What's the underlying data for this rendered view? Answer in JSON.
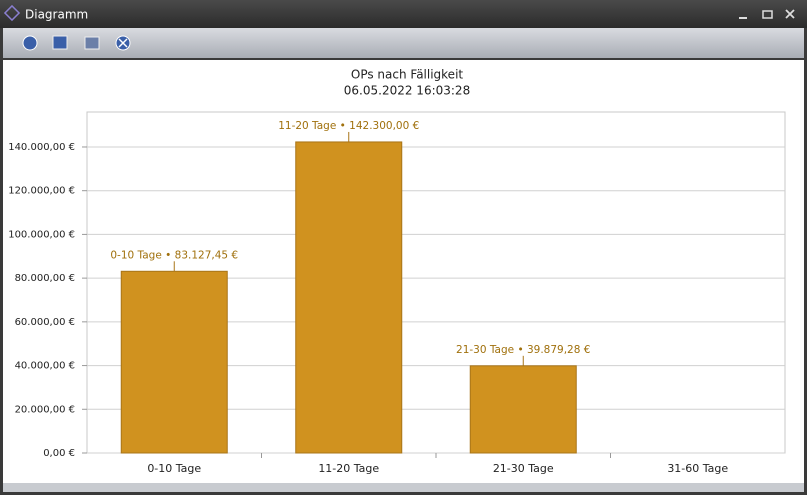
{
  "window": {
    "title": "Diagramm"
  },
  "chart_data": {
    "type": "bar",
    "title": "OPs nach Fälligkeit",
    "subtitle": "06.05.2022 16:03:28",
    "categories": [
      "0-10 Tage",
      "11-20 Tage",
      "21-30 Tage",
      "31-60 Tage"
    ],
    "values": [
      83127.45,
      142300,
      39879.28,
      null
    ],
    "value_labels": [
      "0-10 Tage • 83.127,45 €",
      "11-20 Tage • 142.300,00 €",
      "21-30 Tage • 39.879,28 €",
      null
    ],
    "color": "#d0921f",
    "ylim": [
      0,
      156000
    ],
    "yticks": [
      {
        "value": 0,
        "label": "0,00 €"
      },
      {
        "value": 20000,
        "label": "20.000,00 €"
      },
      {
        "value": 40000,
        "label": "40.000,00 €"
      },
      {
        "value": 60000,
        "label": "60.000,00 €"
      },
      {
        "value": 80000,
        "label": "80.000,00 €"
      },
      {
        "value": 100000,
        "label": "100.000,00 €"
      },
      {
        "value": 120000,
        "label": "120.000,00 €"
      },
      {
        "value": 140000,
        "label": "140.000,00 €"
      }
    ],
    "grid": true
  }
}
